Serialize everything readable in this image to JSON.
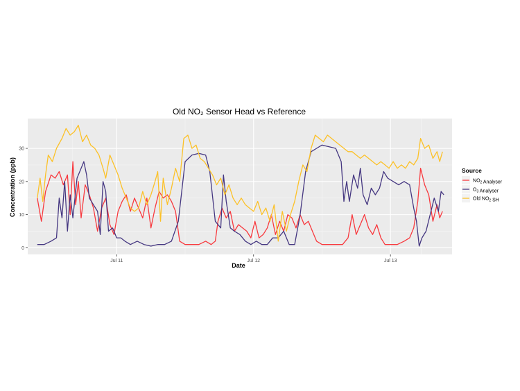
{
  "chart_data": {
    "type": "line",
    "title": "Old NO₂ Sensor Head vs Reference",
    "xlabel": "Date",
    "ylabel": "Concentration (ppb)",
    "ylim": [
      -2,
      39
    ],
    "y_ticks": [
      0,
      10,
      20,
      30
    ],
    "xlim": [
      0.35,
      3.45
    ],
    "x_ticks": [
      {
        "value": 1,
        "label": "Jul 11"
      },
      {
        "value": 2,
        "label": "Jul 12"
      },
      {
        "value": 3,
        "label": "Jul 13"
      }
    ],
    "grid": true,
    "legend": {
      "title": "Source",
      "position": "right"
    },
    "series": [
      {
        "name": "NO₂ Analyser",
        "color": "#f8393e",
        "points": [
          [
            0.42,
            15
          ],
          [
            0.45,
            8
          ],
          [
            0.48,
            17
          ],
          [
            0.52,
            22
          ],
          [
            0.55,
            21
          ],
          [
            0.58,
            23
          ],
          [
            0.61,
            19
          ],
          [
            0.64,
            22
          ],
          [
            0.66,
            10
          ],
          [
            0.68,
            26
          ],
          [
            0.7,
            13
          ],
          [
            0.72,
            20
          ],
          [
            0.74,
            9
          ],
          [
            0.77,
            19
          ],
          [
            0.8,
            16
          ],
          [
            0.83,
            12
          ],
          [
            0.86,
            5
          ],
          [
            0.89,
            12
          ],
          [
            0.92,
            15
          ],
          [
            0.95,
            7
          ],
          [
            0.98,
            4
          ],
          [
            1.01,
            11
          ],
          [
            1.04,
            14
          ],
          [
            1.07,
            16
          ],
          [
            1.1,
            11
          ],
          [
            1.13,
            15
          ],
          [
            1.16,
            12
          ],
          [
            1.19,
            9
          ],
          [
            1.22,
            15
          ],
          [
            1.25,
            6
          ],
          [
            1.28,
            12
          ],
          [
            1.31,
            17
          ],
          [
            1.34,
            15
          ],
          [
            1.37,
            16
          ],
          [
            1.4,
            14
          ],
          [
            1.43,
            11
          ],
          [
            1.46,
            2
          ],
          [
            1.5,
            1
          ],
          [
            1.55,
            1
          ],
          [
            1.6,
            1
          ],
          [
            1.65,
            2
          ],
          [
            1.69,
            1
          ],
          [
            1.72,
            2
          ],
          [
            1.74,
            8
          ],
          [
            1.77,
            12
          ],
          [
            1.8,
            9
          ],
          [
            1.83,
            11
          ],
          [
            1.86,
            5
          ],
          [
            1.89,
            7
          ],
          [
            1.92,
            6
          ],
          [
            1.95,
            5
          ],
          [
            1.98,
            3
          ],
          [
            2.01,
            8
          ],
          [
            2.04,
            3
          ],
          [
            2.07,
            4
          ],
          [
            2.1,
            6
          ],
          [
            2.13,
            10
          ],
          [
            2.16,
            4
          ],
          [
            2.19,
            8
          ],
          [
            2.22,
            5
          ],
          [
            2.25,
            10
          ],
          [
            2.28,
            9
          ],
          [
            2.31,
            6
          ],
          [
            2.34,
            10
          ],
          [
            2.37,
            7
          ],
          [
            2.4,
            8
          ],
          [
            2.43,
            5
          ],
          [
            2.46,
            2
          ],
          [
            2.5,
            1
          ],
          [
            2.55,
            1
          ],
          [
            2.6,
            1
          ],
          [
            2.65,
            1
          ],
          [
            2.69,
            3
          ],
          [
            2.72,
            10
          ],
          [
            2.75,
            4
          ],
          [
            2.78,
            7
          ],
          [
            2.81,
            10
          ],
          [
            2.84,
            6
          ],
          [
            2.87,
            4
          ],
          [
            2.9,
            7
          ],
          [
            2.93,
            3
          ],
          [
            2.96,
            1
          ],
          [
            3.0,
            1
          ],
          [
            3.05,
            1
          ],
          [
            3.1,
            2
          ],
          [
            3.14,
            3
          ],
          [
            3.17,
            6
          ],
          [
            3.2,
            14
          ],
          [
            3.22,
            24
          ],
          [
            3.25,
            19
          ],
          [
            3.28,
            16
          ],
          [
            3.31,
            8
          ],
          [
            3.34,
            13
          ],
          [
            3.36,
            9
          ],
          [
            3.38,
            11
          ]
        ]
      },
      {
        "name": "O₃ Analyser",
        "color": "#453781",
        "points": [
          [
            0.42,
            1
          ],
          [
            0.47,
            1
          ],
          [
            0.52,
            2
          ],
          [
            0.56,
            3
          ],
          [
            0.58,
            15
          ],
          [
            0.6,
            9
          ],
          [
            0.62,
            20
          ],
          [
            0.64,
            5
          ],
          [
            0.66,
            16
          ],
          [
            0.68,
            9
          ],
          [
            0.71,
            21
          ],
          [
            0.74,
            24
          ],
          [
            0.76,
            26
          ],
          [
            0.78,
            22
          ],
          [
            0.8,
            15
          ],
          [
            0.83,
            13
          ],
          [
            0.86,
            11
          ],
          [
            0.88,
            4
          ],
          [
            0.9,
            20
          ],
          [
            0.92,
            17
          ],
          [
            0.94,
            5
          ],
          [
            0.97,
            6
          ],
          [
            1.0,
            3
          ],
          [
            1.03,
            3
          ],
          [
            1.06,
            2
          ],
          [
            1.1,
            1
          ],
          [
            1.15,
            2
          ],
          [
            1.2,
            1
          ],
          [
            1.25,
            0.5
          ],
          [
            1.3,
            1
          ],
          [
            1.35,
            1
          ],
          [
            1.4,
            2
          ],
          [
            1.45,
            8
          ],
          [
            1.5,
            26
          ],
          [
            1.55,
            28
          ],
          [
            1.6,
            28.5
          ],
          [
            1.65,
            28
          ],
          [
            1.68,
            23
          ],
          [
            1.72,
            8
          ],
          [
            1.76,
            6
          ],
          [
            1.78,
            22
          ],
          [
            1.8,
            14
          ],
          [
            1.83,
            6
          ],
          [
            1.86,
            5
          ],
          [
            1.9,
            4
          ],
          [
            1.94,
            2
          ],
          [
            1.98,
            1
          ],
          [
            2.02,
            2
          ],
          [
            2.06,
            1
          ],
          [
            2.1,
            1
          ],
          [
            2.14,
            3
          ],
          [
            2.18,
            3
          ],
          [
            2.22,
            5
          ],
          [
            2.26,
            1
          ],
          [
            2.3,
            1
          ],
          [
            2.34,
            10
          ],
          [
            2.38,
            23
          ],
          [
            2.42,
            29
          ],
          [
            2.46,
            30
          ],
          [
            2.5,
            31
          ],
          [
            2.55,
            30.5
          ],
          [
            2.6,
            30
          ],
          [
            2.64,
            26
          ],
          [
            2.66,
            14
          ],
          [
            2.68,
            20
          ],
          [
            2.7,
            14
          ],
          [
            2.73,
            22
          ],
          [
            2.76,
            18
          ],
          [
            2.78,
            24
          ],
          [
            2.8,
            16
          ],
          [
            2.83,
            13
          ],
          [
            2.86,
            18
          ],
          [
            2.89,
            16
          ],
          [
            2.92,
            18
          ],
          [
            2.95,
            23
          ],
          [
            2.98,
            21
          ],
          [
            3.02,
            20
          ],
          [
            3.06,
            19
          ],
          [
            3.1,
            20
          ],
          [
            3.14,
            19
          ],
          [
            3.17,
            12
          ],
          [
            3.19,
            8
          ],
          [
            3.21,
            0.5
          ],
          [
            3.23,
            3
          ],
          [
            3.26,
            5
          ],
          [
            3.29,
            10
          ],
          [
            3.32,
            15
          ],
          [
            3.35,
            11
          ],
          [
            3.37,
            17
          ],
          [
            3.39,
            16
          ]
        ]
      },
      {
        "name": "Old NO₂ SH",
        "color": "#fcc127",
        "points": [
          [
            0.42,
            15
          ],
          [
            0.44,
            21
          ],
          [
            0.46,
            14
          ],
          [
            0.48,
            22
          ],
          [
            0.5,
            28
          ],
          [
            0.53,
            26
          ],
          [
            0.56,
            30
          ],
          [
            0.6,
            33
          ],
          [
            0.63,
            36
          ],
          [
            0.66,
            34
          ],
          [
            0.69,
            35
          ],
          [
            0.72,
            37
          ],
          [
            0.75,
            32
          ],
          [
            0.78,
            34
          ],
          [
            0.81,
            31
          ],
          [
            0.84,
            30
          ],
          [
            0.87,
            28
          ],
          [
            0.9,
            24
          ],
          [
            0.92,
            21
          ],
          [
            0.95,
            28
          ],
          [
            0.98,
            25
          ],
          [
            1.01,
            22
          ],
          [
            1.04,
            18
          ],
          [
            1.07,
            15
          ],
          [
            1.1,
            12
          ],
          [
            1.13,
            11
          ],
          [
            1.16,
            12
          ],
          [
            1.19,
            17
          ],
          [
            1.22,
            13
          ],
          [
            1.25,
            16
          ],
          [
            1.28,
            20
          ],
          [
            1.3,
            23
          ],
          [
            1.32,
            8
          ],
          [
            1.34,
            21
          ],
          [
            1.37,
            13
          ],
          [
            1.4,
            18
          ],
          [
            1.43,
            24
          ],
          [
            1.46,
            20
          ],
          [
            1.49,
            33
          ],
          [
            1.52,
            34
          ],
          [
            1.55,
            30
          ],
          [
            1.58,
            31
          ],
          [
            1.61,
            27
          ],
          [
            1.64,
            26
          ],
          [
            1.67,
            24
          ],
          [
            1.7,
            22
          ],
          [
            1.73,
            19
          ],
          [
            1.76,
            21
          ],
          [
            1.79,
            16
          ],
          [
            1.82,
            19
          ],
          [
            1.85,
            15
          ],
          [
            1.88,
            13
          ],
          [
            1.91,
            15
          ],
          [
            1.94,
            13
          ],
          [
            1.97,
            12
          ],
          [
            2.0,
            11
          ],
          [
            2.03,
            14
          ],
          [
            2.06,
            10
          ],
          [
            2.09,
            12
          ],
          [
            2.12,
            8
          ],
          [
            2.15,
            13
          ],
          [
            2.18,
            2
          ],
          [
            2.21,
            11
          ],
          [
            2.24,
            5
          ],
          [
            2.27,
            10
          ],
          [
            2.3,
            14
          ],
          [
            2.33,
            20
          ],
          [
            2.36,
            25
          ],
          [
            2.39,
            23
          ],
          [
            2.42,
            30
          ],
          [
            2.45,
            34
          ],
          [
            2.48,
            33
          ],
          [
            2.51,
            32
          ],
          [
            2.54,
            34
          ],
          [
            2.57,
            33
          ],
          [
            2.6,
            32
          ],
          [
            2.63,
            31
          ],
          [
            2.66,
            30
          ],
          [
            2.69,
            29
          ],
          [
            2.72,
            29
          ],
          [
            2.75,
            28
          ],
          [
            2.78,
            27
          ],
          [
            2.81,
            28
          ],
          [
            2.84,
            27
          ],
          [
            2.87,
            26
          ],
          [
            2.9,
            25
          ],
          [
            2.93,
            26
          ],
          [
            2.96,
            25
          ],
          [
            2.99,
            24
          ],
          [
            3.02,
            26
          ],
          [
            3.05,
            24
          ],
          [
            3.08,
            25
          ],
          [
            3.11,
            24
          ],
          [
            3.14,
            26
          ],
          [
            3.17,
            25
          ],
          [
            3.2,
            27
          ],
          [
            3.22,
            33
          ],
          [
            3.25,
            30
          ],
          [
            3.28,
            31
          ],
          [
            3.31,
            27
          ],
          [
            3.34,
            29
          ],
          [
            3.36,
            26
          ],
          [
            3.38,
            29
          ]
        ]
      }
    ]
  }
}
